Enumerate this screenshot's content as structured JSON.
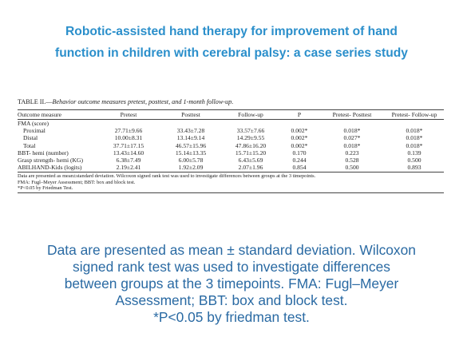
{
  "header": {
    "title_lines": [
      "Robotic-assisted hand therapy for improvement of hand",
      "function in children with cerebral palsy: a case series study"
    ]
  },
  "table": {
    "caption_label": "TABLE II.—",
    "caption_text": "Behavior outcome measures pretest, posttest, and 1-month follow-up.",
    "columns": [
      "Outcome measure",
      "Pretest",
      "Posttest",
      "Follow-up",
      "P",
      "Pretest- Posttest",
      "Pretest- Follow-up"
    ],
    "rows": [
      [
        "FMA (score)"
      ],
      [
        "Proximal",
        "27.71±9.66",
        "33.43±7.28",
        "33.57±7.66",
        "0.002*",
        "0.018*",
        "0.018*"
      ],
      [
        "Distal",
        "10.00±8.31",
        "13.14±9.14",
        "14.29±9.55",
        "0.002*",
        "0.027*",
        "0.018*"
      ],
      [
        "Total",
        "37.71±17.15",
        "46.57±15.96",
        "47.86±16.20",
        "0.002*",
        "0.018*",
        "0.018*"
      ],
      [
        "BBT- hemi (number)",
        "13.43±14.60",
        "15.14±13.35",
        "15.71±15.20",
        "0.170",
        "0.223",
        "0.139"
      ],
      [
        "Grasp strength- hemi (KG)",
        "6.38±7.49",
        "6.00±5.78",
        "6.43±5.69",
        "0.244",
        "0.528",
        "0.500"
      ],
      [
        "ABILHAND-Kids (logits)",
        "2.19±2.41",
        "1.92±2.09",
        "2.07±1.96",
        "0.854",
        "0.500",
        "0.893"
      ]
    ],
    "footnotes": [
      "Data are presented as mean±standard deviation. Wilcoxon signed rank test was used to investigate differences between groups at the 3 timepoints.",
      "FMA: Fugl–Meyer Assessment; BBT: box and block test.",
      "*P<0.05 by Friedman Test."
    ]
  },
  "caption": {
    "lines": [
      "Data are presented as mean ± standard deviation. Wilcoxon",
      "signed rank test was used to investigate differences",
      "between groups at the 3 timepoints. FMA: Fugl–Meyer",
      "Assessment; BBT: box and block test.",
      "*P<0.05 by friedman test."
    ]
  }
}
